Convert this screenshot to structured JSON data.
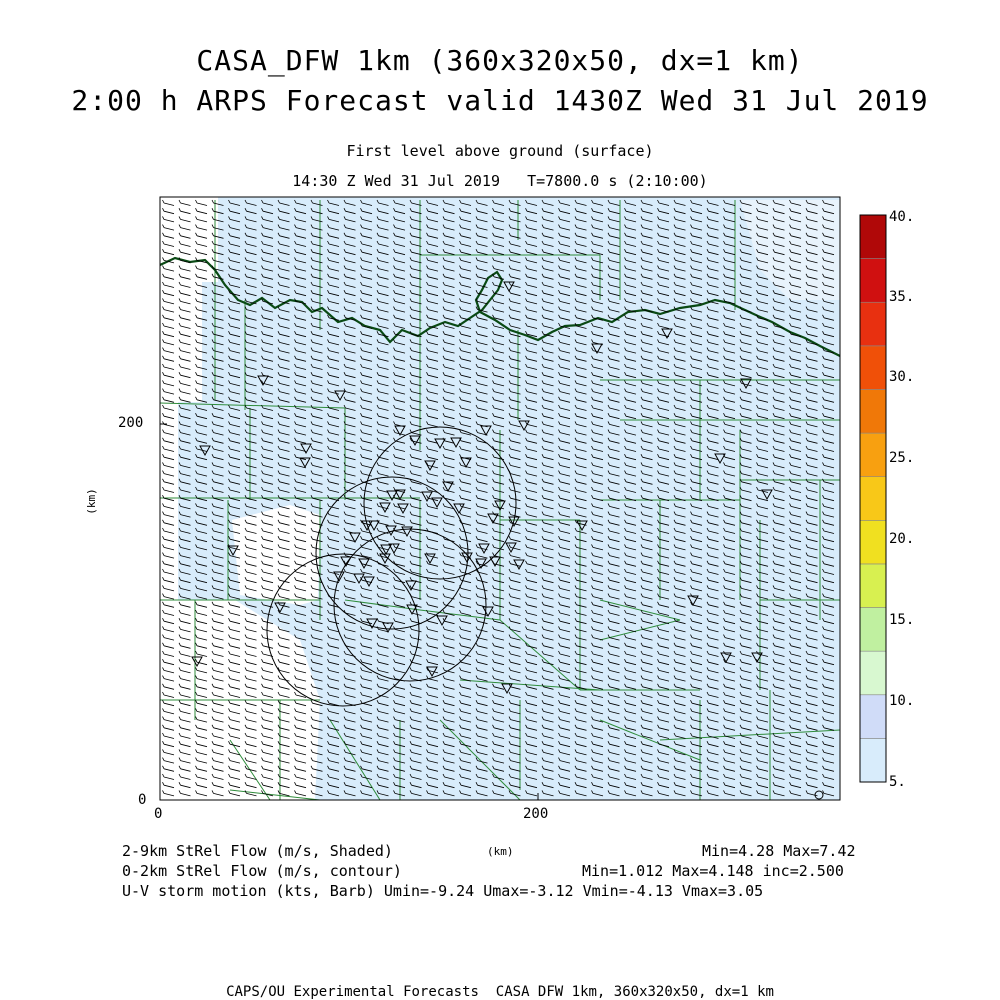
{
  "title": {
    "line1": "CASA_DFW 1km (360x320x50, dx=1 km)",
    "line2": "2:00 h ARPS Forecast valid 1430Z Wed 31 Jul 2019"
  },
  "subtitle": {
    "line1": "First level above ground (surface)",
    "line2": "14:30 Z Wed 31 Jul 2019   T=7800.0 s (2:10:00)"
  },
  "axes": {
    "x_ticks": [
      "0",
      "200"
    ],
    "y_ticks": [
      "0",
      "200"
    ],
    "x_unit": "(km)",
    "y_unit": "(km)"
  },
  "colorbar": {
    "labels": [
      "5.",
      "10.",
      "15.",
      "20.",
      "25.",
      "30.",
      "35.",
      "40."
    ],
    "colors": [
      "#d8ecfb",
      "#d0dcf8",
      "#d8f8d0",
      "#c0f0a0",
      "#d8f050",
      "#f0e020",
      "#f8c818",
      "#f8a010",
      "#f07808",
      "#f05008",
      "#e83010",
      "#d01010",
      "#b00808"
    ]
  },
  "legend": {
    "shaded": "2-9km StRel Flow (m/s, Shaded)",
    "shaded_stats": "Min=4.28 Max=7.42",
    "contour": "0-2km StRel Flow (m/s, contour)",
    "contour_stats": "Min=1.012 Max=4.148 inc=2.500",
    "barb": "U-V storm motion (kts, Barb) Umin=-9.24 Umax=-3.12 Vmin=-4.13 Vmax=3.05"
  },
  "credit": "CAPS/OU Experimental Forecasts  CASA DFW 1km, 360x320x50, dx=1 km",
  "colors": {
    "field": "#d8ecfb",
    "county": "#2e8b3a",
    "state_border": "#0a4a14",
    "barb": "#000000"
  }
}
